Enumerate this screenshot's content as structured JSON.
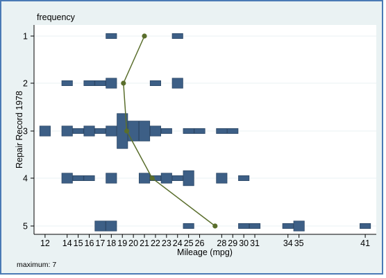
{
  "chart_data": {
    "type": "histogram-by-group",
    "title": "",
    "frequency_label": "frequency",
    "xlabel": "Mileage (mpg)",
    "ylabel": "Repair Record 1978",
    "note": "maximum: 7",
    "max_frequency": 7,
    "xlim": [
      11,
      42
    ],
    "x_tick_labels": [
      "12",
      "14",
      "15",
      "16",
      "17",
      "18",
      "19",
      "20",
      "21",
      "22",
      "23",
      "24",
      "25",
      "26",
      "28",
      "29",
      "30",
      "31",
      "34",
      "35",
      "41"
    ],
    "y_categories": [
      "1",
      "2",
      "3",
      "4",
      "5"
    ],
    "groups": [
      {
        "category": "1",
        "bins": {
          "18": 1,
          "24": 1
        }
      },
      {
        "category": "2",
        "bins": {
          "14": 1,
          "16": 1,
          "17": 1,
          "18": 2,
          "22": 1,
          "24": 2
        }
      },
      {
        "category": "3",
        "bins": {
          "12": 2,
          "14": 2,
          "15": 1,
          "16": 2,
          "17": 1,
          "18": 2,
          "19": 7,
          "20": 4,
          "21": 4,
          "22": 2,
          "23": 1,
          "25": 1,
          "26": 1,
          "28": 1,
          "29": 1
        }
      },
      {
        "category": "4",
        "bins": {
          "14": 2,
          "15": 1,
          "16": 1,
          "18": 2,
          "21": 2,
          "22": 1,
          "23": 2,
          "24": 1,
          "25": 3,
          "28": 2,
          "30": 1
        }
      },
      {
        "category": "5",
        "bins": {
          "17": 2,
          "18": 2,
          "25": 1,
          "30": 1,
          "31": 1,
          "34": 1,
          "35": 2,
          "41": 1
        }
      }
    ],
    "mean_line": [
      {
        "category": "1",
        "x": 21
      },
      {
        "category": "2",
        "x": 19.1
      },
      {
        "category": "3",
        "x": 19.4
      },
      {
        "category": "4",
        "x": 21.7
      },
      {
        "category": "5",
        "x": 27.4
      }
    ],
    "colors": {
      "bar": "#3d5f86",
      "bar_edge": "#2c4766",
      "line": "#5a6e2c",
      "marker": "#5a6e2c",
      "plot_bg": "#ffffff",
      "outer_bg": "#eaf2f3",
      "grid": "#eaf2f3"
    }
  }
}
